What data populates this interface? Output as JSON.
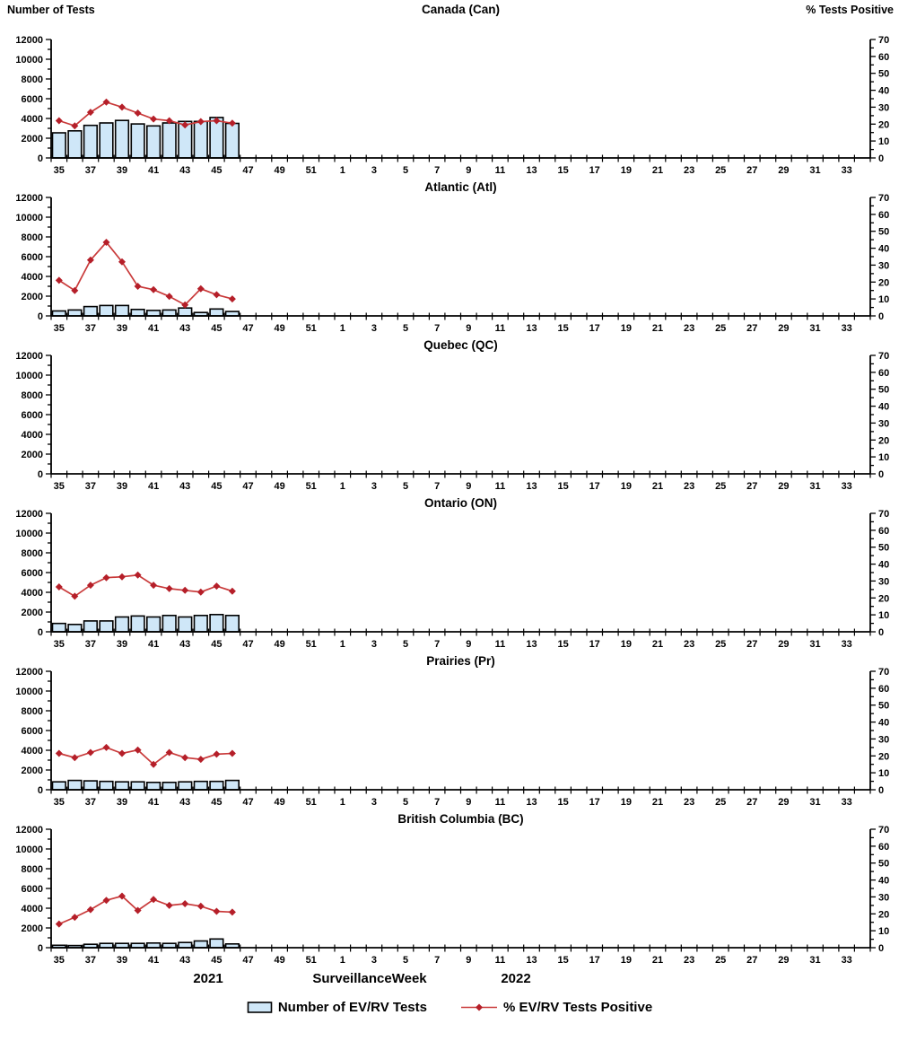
{
  "header": {
    "left_label": "Number of Tests",
    "right_label": "% Tests Positive"
  },
  "footer": {
    "year_left": "2021",
    "axis_title": "SurveillanceWeek",
    "year_right": "2022"
  },
  "legend": {
    "bar_label": "Number of EV/RV Tests",
    "line_label": "% EV/RV Tests Positive"
  },
  "colors": {
    "bar_fill": "#cfe7f8",
    "bar_border": "#000000",
    "line": "#c93a3a",
    "marker": "#b51f29",
    "axis": "#000000"
  },
  "axes": {
    "left_ticks": [
      0,
      2000,
      4000,
      6000,
      8000,
      10000,
      12000
    ],
    "left_minor_step": 1000,
    "left_max": 12000,
    "right_ticks": [
      0,
      10,
      20,
      30,
      40,
      50,
      60,
      70
    ],
    "right_minor_step": 5,
    "right_max": 70,
    "x_categories": [
      35,
      36,
      37,
      38,
      39,
      40,
      41,
      42,
      43,
      44,
      45,
      46,
      47,
      48,
      49,
      50,
      51,
      52,
      1,
      2,
      3,
      4,
      5,
      6,
      7,
      8,
      9,
      10,
      11,
      12,
      13,
      14,
      15,
      16,
      17,
      18,
      19,
      20,
      21,
      22,
      23,
      24,
      25,
      26,
      27,
      28,
      29,
      30,
      31,
      32,
      33,
      34
    ],
    "x_label_rule": "odd weeks labeled"
  },
  "chart_data": [
    {
      "type": "bar+line",
      "title": "Canada (Can)",
      "weeks": [
        35,
        36,
        37,
        38,
        39,
        40,
        41,
        42,
        43,
        44,
        45,
        46
      ],
      "series": [
        {
          "name": "Number of EV/RV Tests",
          "axis": "left",
          "values": [
            2550,
            2750,
            3300,
            3550,
            3800,
            3450,
            3250,
            3550,
            3700,
            3700,
            4100,
            3500
          ]
        },
        {
          "name": "% EV/RV Tests Positive",
          "axis": "right",
          "values": [
            22,
            19,
            27,
            33,
            30,
            26.5,
            23,
            22,
            19.5,
            21.5,
            22,
            20.5
          ]
        }
      ]
    },
    {
      "type": "bar+line",
      "title": "Atlantic (Atl)",
      "weeks": [
        35,
        36,
        37,
        38,
        39,
        40,
        41,
        42,
        43,
        44,
        45,
        46
      ],
      "series": [
        {
          "name": "Number of EV/RV Tests",
          "axis": "left",
          "values": [
            500,
            600,
            950,
            1050,
            1050,
            650,
            550,
            600,
            800,
            350,
            700,
            450
          ]
        },
        {
          "name": "% EV/RV Tests Positive",
          "axis": "right",
          "values": [
            21,
            15,
            33,
            43.5,
            32,
            17.5,
            15.5,
            11.5,
            6.5,
            16,
            12.5,
            10
          ]
        }
      ]
    },
    {
      "type": "bar+line",
      "title": "Quebec (QC)",
      "weeks": [],
      "series": [
        {
          "name": "Number of EV/RV Tests",
          "axis": "left",
          "values": []
        },
        {
          "name": "% EV/RV Tests Positive",
          "axis": "right",
          "values": []
        }
      ]
    },
    {
      "type": "bar+line",
      "title": "Ontario (ON)",
      "weeks": [
        35,
        36,
        37,
        38,
        39,
        40,
        41,
        42,
        43,
        44,
        45,
        46
      ],
      "series": [
        {
          "name": "Number of EV/RV Tests",
          "axis": "left",
          "values": [
            850,
            750,
            1100,
            1100,
            1500,
            1600,
            1500,
            1650,
            1500,
            1650,
            1750,
            1650
          ]
        },
        {
          "name": "% EV/RV Tests Positive",
          "axis": "right",
          "values": [
            26.5,
            21,
            27.5,
            32,
            32.5,
            33.5,
            27.5,
            25.5,
            24.5,
            23.5,
            27,
            24
          ]
        }
      ]
    },
    {
      "type": "bar+line",
      "title": "Prairies (Pr)",
      "weeks": [
        35,
        36,
        37,
        38,
        39,
        40,
        41,
        42,
        43,
        44,
        45,
        46
      ],
      "series": [
        {
          "name": "Number of EV/RV Tests",
          "axis": "left",
          "values": [
            800,
            950,
            900,
            850,
            800,
            800,
            750,
            750,
            800,
            850,
            850,
            950
          ]
        },
        {
          "name": "% EV/RV Tests Positive",
          "axis": "right",
          "values": [
            21.5,
            19,
            22,
            25,
            21.5,
            23.5,
            15,
            22,
            19,
            18,
            21,
            21.5
          ]
        }
      ]
    },
    {
      "type": "bar+line",
      "title": "British Columbia (BC)",
      "weeks": [
        35,
        36,
        37,
        38,
        39,
        40,
        41,
        42,
        43,
        44,
        45,
        46
      ],
      "series": [
        {
          "name": "Number of EV/RV Tests",
          "axis": "left",
          "values": [
            250,
            220,
            350,
            440,
            440,
            440,
            470,
            440,
            530,
            680,
            880,
            380
          ]
        },
        {
          "name": "% EV/RV Tests Positive",
          "axis": "right",
          "values": [
            14,
            18,
            22.5,
            28,
            30.5,
            22,
            28.5,
            25,
            26,
            24.5,
            21.5,
            21
          ]
        }
      ]
    }
  ]
}
